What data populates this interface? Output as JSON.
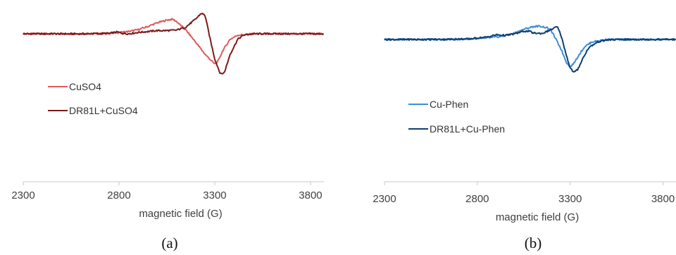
{
  "chart_data": [
    {
      "type": "line",
      "panel_label": "(a)",
      "xlabel": "magnetic field (G)",
      "ylabel": "",
      "xticks": [
        2300,
        2800,
        3300,
        3800
      ],
      "xlim": [
        2300,
        3870
      ],
      "ylim": [
        -1.0,
        0.6
      ],
      "grid": false,
      "legend_position": "left",
      "series": [
        {
          "name": "CuSO4",
          "color": "#E05A5A",
          "x": [
            2300,
            2600,
            2700,
            2750,
            2800,
            2850,
            2900,
            2950,
            3000,
            3050,
            3080,
            3100,
            3150,
            3200,
            3250,
            3300,
            3320,
            3340,
            3380,
            3420,
            3500,
            3600,
            3700,
            3870
          ],
          "y": [
            0.0,
            0.0,
            0.0,
            0.01,
            0.03,
            0.05,
            0.09,
            0.16,
            0.24,
            0.3,
            0.32,
            0.27,
            0.08,
            -0.18,
            -0.45,
            -0.66,
            -0.58,
            -0.38,
            -0.12,
            -0.03,
            0.0,
            0.0,
            0.0,
            0.0
          ]
        },
        {
          "name": "DR81L+CuSO4",
          "color": "#7A1A1A",
          "x": [
            2300,
            2600,
            2750,
            2790,
            2820,
            2850,
            2900,
            2950,
            3000,
            3050,
            3100,
            3150,
            3200,
            3230,
            3250,
            3270,
            3300,
            3330,
            3350,
            3380,
            3420,
            3450,
            3500,
            3600,
            3700,
            3870
          ],
          "y": [
            0.0,
            0.0,
            0.01,
            0.04,
            0.01,
            0.0,
            0.03,
            0.05,
            0.07,
            0.07,
            0.08,
            0.15,
            0.32,
            0.45,
            0.4,
            0.0,
            -0.55,
            -0.88,
            -0.85,
            -0.45,
            -0.12,
            -0.03,
            0.0,
            0.0,
            0.0,
            0.0
          ]
        }
      ]
    },
    {
      "type": "line",
      "panel_label": "(b)",
      "xlabel": "magnetic field (G)",
      "ylabel": "",
      "xticks": [
        2300,
        2800,
        3300,
        3800
      ],
      "xlim": [
        2300,
        3870
      ],
      "ylim": [
        -1.0,
        0.6
      ],
      "grid": false,
      "legend_position": "left",
      "series": [
        {
          "name": "Cu-Phen",
          "color": "#3A8FD6",
          "x": [
            2300,
            2600,
            2750,
            2850,
            2900,
            2950,
            3000,
            3050,
            3100,
            3130,
            3150,
            3180,
            3200,
            3250,
            3280,
            3300,
            3320,
            3350,
            3380,
            3420,
            3500,
            3600,
            3700,
            3870
          ],
          "y": [
            0.0,
            0.0,
            0.01,
            0.03,
            0.05,
            0.08,
            0.14,
            0.22,
            0.28,
            0.29,
            0.28,
            0.25,
            0.18,
            -0.2,
            -0.5,
            -0.6,
            -0.52,
            -0.32,
            -0.15,
            -0.05,
            0.0,
            0.0,
            0.0,
            0.0
          ]
        },
        {
          "name": "DR81L+Cu-Phen",
          "color": "#103E70",
          "x": [
            2300,
            2600,
            2750,
            2850,
            2900,
            2950,
            3000,
            3050,
            3080,
            3100,
            3150,
            3200,
            3230,
            3250,
            3280,
            3300,
            3320,
            3340,
            3370,
            3400,
            3450,
            3500,
            3600,
            3700,
            3870
          ],
          "y": [
            0.0,
            0.0,
            0.01,
            0.05,
            0.1,
            0.09,
            0.12,
            0.18,
            0.18,
            0.14,
            0.13,
            0.22,
            0.28,
            0.1,
            -0.35,
            -0.62,
            -0.72,
            -0.66,
            -0.4,
            -0.18,
            -0.05,
            -0.01,
            0.0,
            0.0,
            0.0
          ]
        }
      ]
    }
  ]
}
